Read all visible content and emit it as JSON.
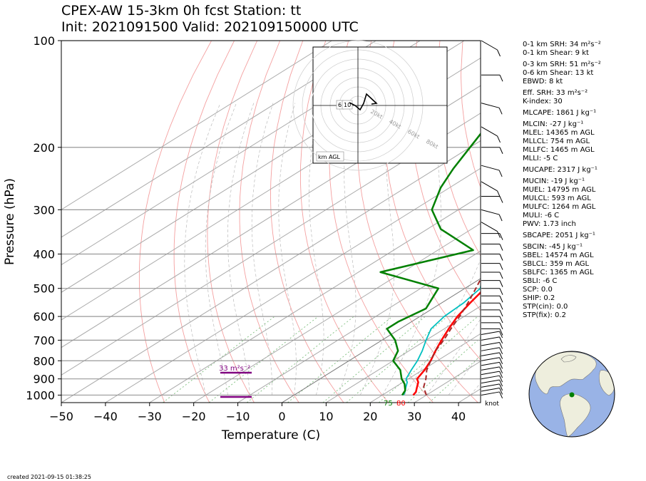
{
  "title_line1": "CPEX-AW 15-3km  0h fcst  Station: tt",
  "title_line2": "Init: 2021091500  Valid: 202109150000 UTC",
  "created": "created 2021-09-15 01:38:25",
  "colors": {
    "temperature": "#ff0000",
    "dewpoint": "#008000",
    "wetbulb": "#00c0c0",
    "parcel": "#a52a2a",
    "srh_bar": "#800080",
    "map_land": "#eeeedd",
    "map_ocean": "#99b3e6"
  },
  "chart_data": {
    "type": "skew-t",
    "title": "CPEX-AW 15-3km  0h fcst  Station: tt",
    "xlabel": "Temperature (C)",
    "ylabel": "Pressure (hPa)",
    "xlim": [
      -50,
      45
    ],
    "ylim": [
      1050,
      100
    ],
    "y_scale": "log",
    "x_ticks": [
      "−50",
      "−40",
      "−30",
      "−20",
      "−10",
      "0",
      "10",
      "20",
      "30",
      "40"
    ],
    "y_ticks": [
      "100",
      "200",
      "300",
      "400",
      "500",
      "600",
      "700",
      "800",
      "900",
      "1000"
    ],
    "grid": true,
    "series": [
      {
        "key": "temperature",
        "points": [
          [
            27,
            1000
          ],
          [
            26.5,
            980
          ],
          [
            25,
            950
          ],
          [
            23.5,
            920
          ],
          [
            22,
            900
          ],
          [
            20.5,
            850
          ],
          [
            18.5,
            800
          ],
          [
            16,
            750
          ],
          [
            13.5,
            700
          ],
          [
            11,
            650
          ],
          [
            8.5,
            600
          ],
          [
            6.5,
            550
          ],
          [
            4.5,
            500
          ],
          [
            3.5,
            470
          ],
          [
            2.5,
            450
          ],
          [
            1,
            430
          ],
          [
            -1.5,
            400
          ],
          [
            -4.5,
            370
          ],
          [
            -8,
            340
          ],
          [
            -12,
            300
          ],
          [
            -16,
            270
          ],
          [
            -21,
            240
          ],
          [
            -26,
            210
          ],
          [
            -31,
            185
          ],
          [
            -37,
            160
          ],
          [
            -43,
            140
          ],
          [
            -47,
            125
          ],
          [
            -50,
            115
          ],
          [
            -53,
            100
          ]
        ]
      },
      {
        "key": "wetbulb",
        "points": [
          [
            24.8,
            1000
          ],
          [
            24,
            980
          ],
          [
            22.5,
            950
          ],
          [
            21,
            920
          ],
          [
            19.5,
            900
          ],
          [
            17.5,
            850
          ],
          [
            15.5,
            800
          ],
          [
            13,
            750
          ],
          [
            10,
            700
          ],
          [
            7,
            650
          ],
          [
            5.5,
            600
          ],
          [
            5,
            550
          ],
          [
            3.5,
            500
          ],
          [
            1.5,
            480
          ],
          [
            0,
            460
          ],
          [
            -1,
            430
          ],
          [
            -2.5,
            400
          ],
          [
            -5,
            370
          ],
          [
            -8.5,
            340
          ],
          [
            -12.5,
            300
          ],
          [
            -17,
            270
          ],
          [
            -22,
            240
          ],
          [
            -27,
            210
          ],
          [
            -32,
            185
          ],
          [
            -38,
            160
          ],
          [
            -43,
            140
          ],
          [
            -48,
            125
          ],
          [
            -51,
            115
          ],
          [
            -54,
            100
          ]
        ]
      },
      {
        "key": "dewpoint",
        "points": [
          [
            24.5,
            1000
          ],
          [
            23.5,
            970
          ],
          [
            21,
            930
          ],
          [
            18.5,
            900
          ],
          [
            15,
            850
          ],
          [
            10,
            800
          ],
          [
            7.5,
            750
          ],
          [
            3,
            700
          ],
          [
            -3,
            650
          ],
          [
            -3,
            620
          ],
          [
            -1.5,
            570
          ],
          [
            -6,
            500
          ],
          [
            -25,
            450
          ],
          [
            -12,
            390
          ],
          [
            -27,
            340
          ],
          [
            -36,
            300
          ],
          [
            -42,
            260
          ],
          [
            -46,
            230
          ],
          [
            -50,
            200
          ],
          [
            -53,
            180
          ],
          [
            -56,
            160
          ],
          [
            -60,
            135
          ],
          [
            -65,
            115
          ],
          [
            -68,
            100
          ]
        ]
      },
      {
        "key": "parcel",
        "points": [
          [
            30,
            1000
          ],
          [
            26.5,
            950
          ],
          [
            24,
            900
          ],
          [
            21,
            850
          ],
          [
            18.5,
            800
          ],
          [
            16,
            750
          ],
          [
            14,
            700
          ],
          [
            11.5,
            650
          ],
          [
            9,
            600
          ],
          [
            6,
            550
          ],
          [
            2.5,
            500
          ],
          [
            -1.5,
            450
          ],
          [
            -6,
            400
          ],
          [
            -11.5,
            350
          ],
          [
            -18,
            300
          ],
          [
            -22,
            270
          ],
          [
            -28,
            240
          ],
          [
            -33,
            210
          ],
          [
            -39,
            190
          ],
          [
            -44,
            170
          ],
          [
            -50,
            150
          ],
          [
            -57,
            130
          ],
          [
            -64,
            115
          ],
          [
            -71,
            100
          ]
        ]
      }
    ],
    "srh_label": "33 m²s⁻²",
    "surface_labels": {
      "dewpoint": "75",
      "temperature": "80"
    },
    "hodograph": {
      "label": "km AGL",
      "rings": [
        "20kt",
        "40kt",
        "60kt",
        "80kt"
      ],
      "markers": [
        "6",
        "10"
      ]
    },
    "barb_unit": "knot"
  },
  "parameters": [
    {
      "text": "0-1 km SRH: 34 m²s⁻²",
      "gap": false
    },
    {
      "text": "0-1 km Shear: 9 kt",
      "gap": false
    },
    {
      "text": "0-3 km SRH: 51 m²s⁻²",
      "gap": true
    },
    {
      "text": "0-6 km Shear: 13 kt",
      "gap": false
    },
    {
      "text": "EBWD: 8 kt",
      "gap": false
    },
    {
      "text": "Eff. SRH: 33 m²s⁻²",
      "gap": true
    },
    {
      "text": "K-index: 30",
      "gap": false
    },
    {
      "text": "MLCAPE: 1861 J kg⁻¹",
      "gap": true
    },
    {
      "text": "MLCIN: -27 J kg⁻¹",
      "gap": true
    },
    {
      "text": "MLEL: 14365 m AGL",
      "gap": false
    },
    {
      "text": "MLLCL: 754 m AGL",
      "gap": false
    },
    {
      "text": "MLLFC: 1465 m AGL",
      "gap": false
    },
    {
      "text": "MLLI: -5 C",
      "gap": false
    },
    {
      "text": "MUCAPE: 2317 J kg⁻¹",
      "gap": true
    },
    {
      "text": "MUCIN: -19 J kg⁻¹",
      "gap": true
    },
    {
      "text": "MUEL: 14795 m AGL",
      "gap": false
    },
    {
      "text": "MULCL: 593 m AGL",
      "gap": false
    },
    {
      "text": "MULFC: 1264 m AGL",
      "gap": false
    },
    {
      "text": "MULI: -6 C",
      "gap": false
    },
    {
      "text": "PWV: 1.73 inch",
      "gap": false
    },
    {
      "text": "SBCAPE: 2051 J kg⁻¹",
      "gap": true
    },
    {
      "text": "SBCIN: -45 J kg⁻¹",
      "gap": true
    },
    {
      "text": "SBEL: 14574 m AGL",
      "gap": false
    },
    {
      "text": "SBLCL: 359 m AGL",
      "gap": false
    },
    {
      "text": "SBLFC: 1365 m AGL",
      "gap": false
    },
    {
      "text": "SBLI: -6 C",
      "gap": false
    },
    {
      "text": "SCP: 0.0",
      "gap": false
    },
    {
      "text": "SHIP: 0.2",
      "gap": false
    },
    {
      "text": "STP(cin): 0.0",
      "gap": false
    },
    {
      "text": "STP(fix): 0.2",
      "gap": false
    }
  ]
}
